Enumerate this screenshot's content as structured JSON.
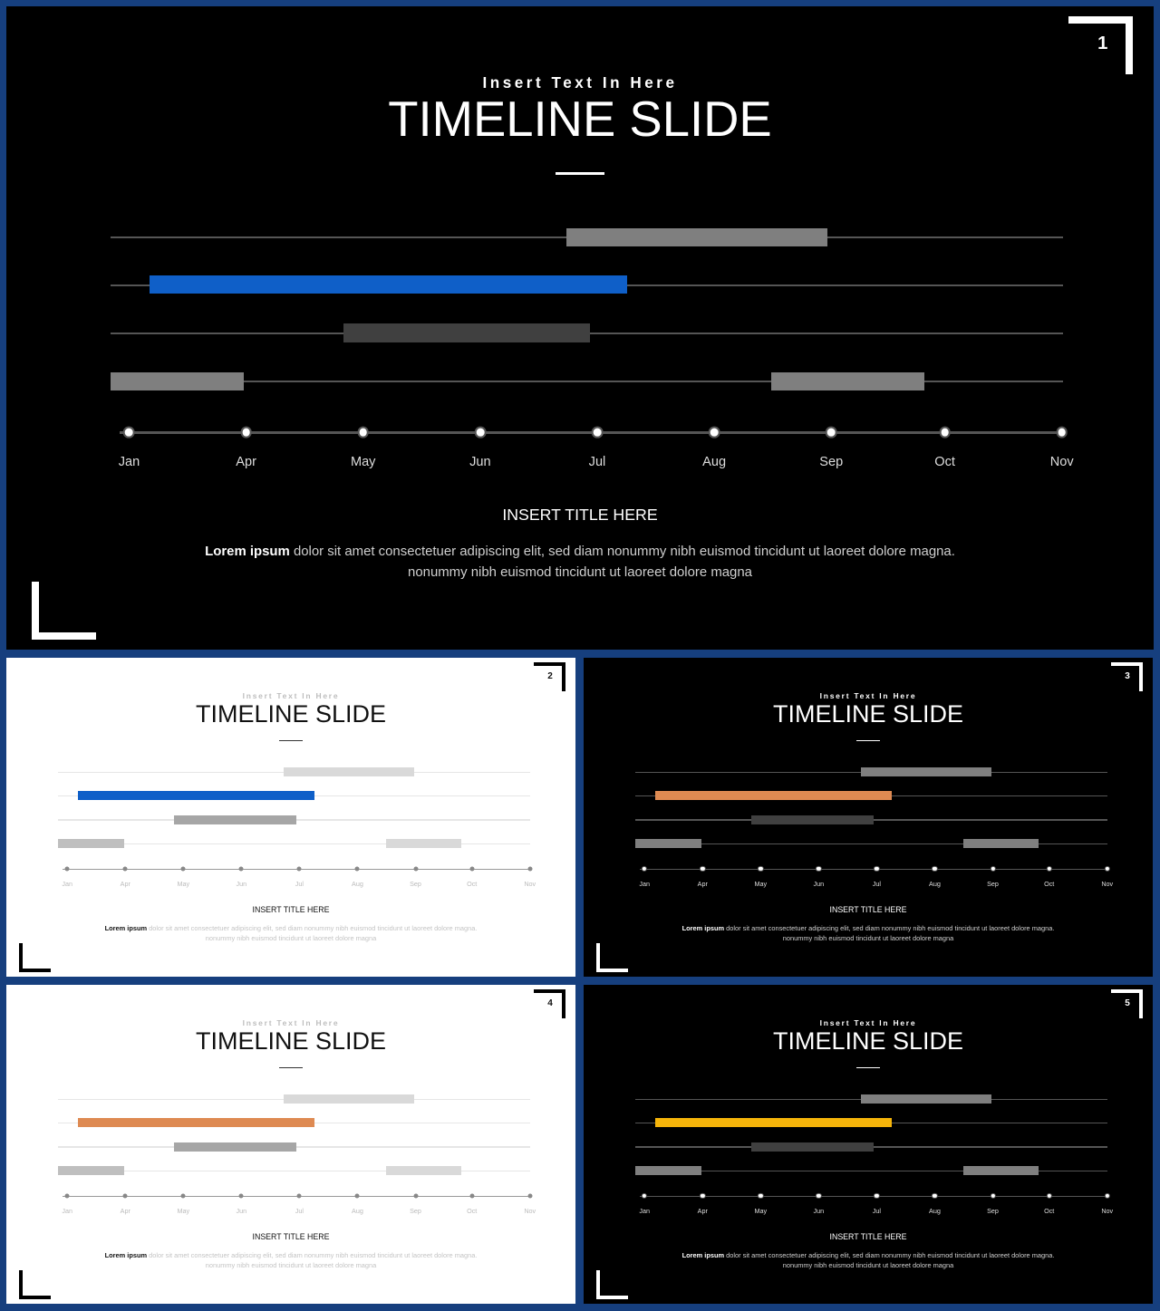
{
  "slides": [
    {
      "number": "1",
      "theme": "dark",
      "accent": "#0f5fc8",
      "subtitle": "Insert Text In Here",
      "title": "TIMELINE SLIDE",
      "section_title": "INSERT TITLE HERE",
      "desc_bold": "Lorem ipsum",
      "desc_text": " dolor sit amet consectetuer adipiscing elit, sed diam nonummy nibh euismod tincidunt ut laoreet dolore magna. nonummy nibh euismod tincidunt ut laoreet dolore magna"
    },
    {
      "number": "2",
      "theme": "light",
      "accent": "#0f5fc8",
      "subtitle": "Insert Text In Here",
      "title": "TIMELINE SLIDE",
      "section_title": "INSERT TITLE HERE",
      "desc_bold": "Lorem ipsum",
      "desc_text": " dolor sit amet consectetuer adipiscing elit, sed diam nonummy nibh euismod tincidunt ut laoreet dolore magna. nonummy nibh euismod tincidunt ut laoreet dolore magna"
    },
    {
      "number": "3",
      "theme": "dark",
      "accent": "#de8a52",
      "subtitle": "Insert Text In Here",
      "title": "TIMELINE SLIDE",
      "section_title": "INSERT TITLE HERE",
      "desc_bold": "Lorem ipsum",
      "desc_text": " dolor sit amet consectetuer adipiscing elit, sed diam nonummy nibh euismod tincidunt ut laoreet dolore magna. nonummy nibh euismod tincidunt ut laoreet dolore magna"
    },
    {
      "number": "4",
      "theme": "light",
      "accent": "#de8a52",
      "subtitle": "Insert Text In Here",
      "title": "TIMELINE SLIDE",
      "section_title": "INSERT TITLE HERE",
      "desc_bold": "Lorem ipsum",
      "desc_text": " dolor sit amet consectetuer adipiscing elit, sed diam nonummy nibh euismod tincidunt ut laoreet dolore magna. nonummy nibh euismod tincidunt ut laoreet dolore magna"
    },
    {
      "number": "5",
      "theme": "dark",
      "accent": "#f5b40a",
      "subtitle": "Insert Text In Here",
      "title": "TIMELINE SLIDE",
      "section_title": "INSERT TITLE HERE",
      "desc_bold": "Lorem ipsum",
      "desc_text": " dolor sit amet consectetuer adipiscing elit, sed diam nonummy nibh euismod tincidunt ut laoreet dolore magna. nonummy nibh euismod tincidunt ut laoreet dolore magna"
    }
  ],
  "months": [
    "Jan",
    "Apr",
    "May",
    "Jun",
    "Jul",
    "Aug",
    "Sep",
    "Oct",
    "Nov"
  ],
  "colors": {
    "dark_bar_light": "#7f7f7f",
    "dark_bar_deep": "#404040",
    "light_bar_pale": "#d9d9d9",
    "light_bar_mid": "#a6a6a6",
    "light_bar_soft": "#bfbfbf"
  }
}
